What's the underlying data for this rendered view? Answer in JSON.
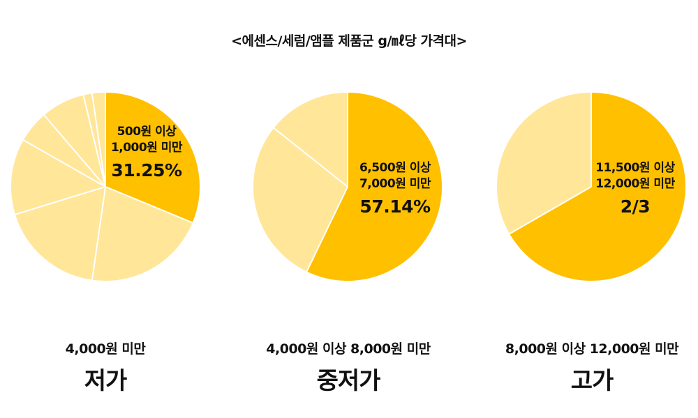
{
  "chart_data": [
    {
      "type": "pie",
      "title": "<에센스/세럼/앰플 제품군 g/㎖당 가격대>",
      "caption_range": "4,000원 미만",
      "caption_tier": "저가",
      "slices": [
        {
          "label": "500원 이상 1,000원 미만",
          "value": 31.25,
          "highlight": true
        },
        {
          "label": "",
          "value": 21.0,
          "highlight": false
        },
        {
          "label": "",
          "value": 18.0,
          "highlight": false
        },
        {
          "label": "",
          "value": 13.0,
          "highlight": false
        },
        {
          "label": "",
          "value": 5.5,
          "highlight": false
        },
        {
          "label": "",
          "value": 7.5,
          "highlight": false
        },
        {
          "label": "",
          "value": 1.5,
          "highlight": false
        },
        {
          "label": "",
          "value": 2.25,
          "highlight": false
        }
      ],
      "highlight_label_line1": "500원 이상",
      "highlight_label_line2": "1,000원 미만",
      "highlight_value": "31.25%"
    },
    {
      "type": "pie",
      "caption_range": "4,000원 이상 8,000원 미만",
      "caption_tier": "중저가",
      "slices": [
        {
          "label": "6,500원 이상 7,000원 미만",
          "value": 57.14,
          "highlight": true
        },
        {
          "label": "",
          "value": 28.57,
          "highlight": false
        },
        {
          "label": "",
          "value": 14.29,
          "highlight": false
        }
      ],
      "highlight_label_line1": "6,500원 이상",
      "highlight_label_line2": "7,000원 미만",
      "highlight_value": "57.14%"
    },
    {
      "type": "pie",
      "caption_range": "8,000원 이상 12,000원 미만",
      "caption_tier": "고가",
      "slices": [
        {
          "label": "11,500원 이상 12,000원 미만",
          "value": 66.67,
          "highlight": true
        },
        {
          "label": "",
          "value": 33.33,
          "highlight": false
        }
      ],
      "highlight_label_line1": "11,500원 이상",
      "highlight_label_line2": "12,000원 미만",
      "highlight_value": "2/3"
    }
  ],
  "colors": {
    "highlight": "#FFC000",
    "other": "#FFE699",
    "separator": "#FFFFFF"
  }
}
